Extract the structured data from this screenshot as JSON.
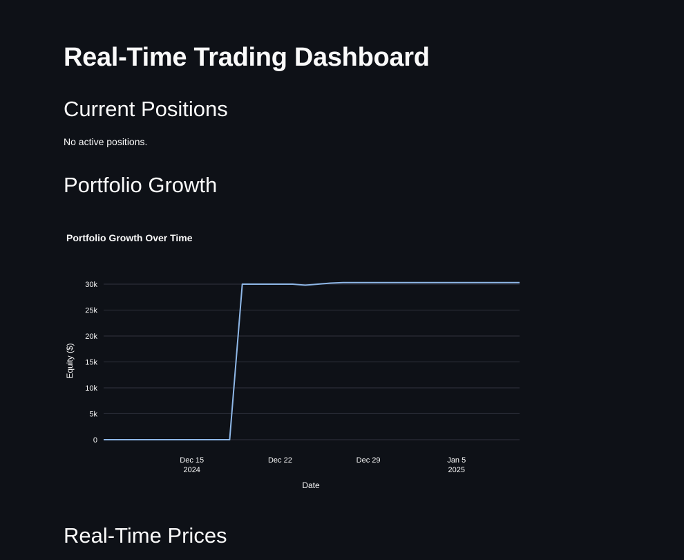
{
  "page": {
    "title": "Real-Time Trading Dashboard",
    "sections": {
      "positions": {
        "heading": "Current Positions",
        "message": "No active positions."
      },
      "growth": {
        "heading": "Portfolio Growth"
      },
      "prices": {
        "heading": "Real-Time Prices"
      }
    }
  },
  "colors": {
    "background": "#0e1117",
    "text": "#fafafa",
    "line": "#8fb8e8",
    "grid": "#31333f"
  },
  "chart_data": {
    "type": "line",
    "title": "Portfolio Growth Over Time",
    "xlabel": "Date",
    "ylabel": "Equity ($)",
    "xlim": [
      "2024-12-08",
      "2025-01-10"
    ],
    "ylim": [
      0,
      30000
    ],
    "x_ticks": [
      {
        "date": "2024-12-15",
        "label": "Dec 15",
        "sub": "2024"
      },
      {
        "date": "2024-12-22",
        "label": "Dec 22",
        "sub": ""
      },
      {
        "date": "2024-12-29",
        "label": "Dec 29",
        "sub": ""
      },
      {
        "date": "2025-01-05",
        "label": "Jan 5",
        "sub": "2025"
      }
    ],
    "y_ticks": [
      {
        "value": 0,
        "label": "0"
      },
      {
        "value": 5000,
        "label": "5k"
      },
      {
        "value": 10000,
        "label": "10k"
      },
      {
        "value": 15000,
        "label": "15k"
      },
      {
        "value": 20000,
        "label": "20k"
      },
      {
        "value": 25000,
        "label": "25k"
      },
      {
        "value": 30000,
        "label": "30k"
      }
    ],
    "grid": true,
    "series": [
      {
        "name": "",
        "x": [
          "2024-12-08",
          "2024-12-18",
          "2024-12-19",
          "2024-12-22",
          "2024-12-23",
          "2024-12-24",
          "2024-12-26",
          "2024-12-27",
          "2025-01-10"
        ],
        "values": [
          0,
          0,
          30000,
          30000,
          30000,
          29800,
          30200,
          30300,
          30300
        ]
      }
    ]
  }
}
